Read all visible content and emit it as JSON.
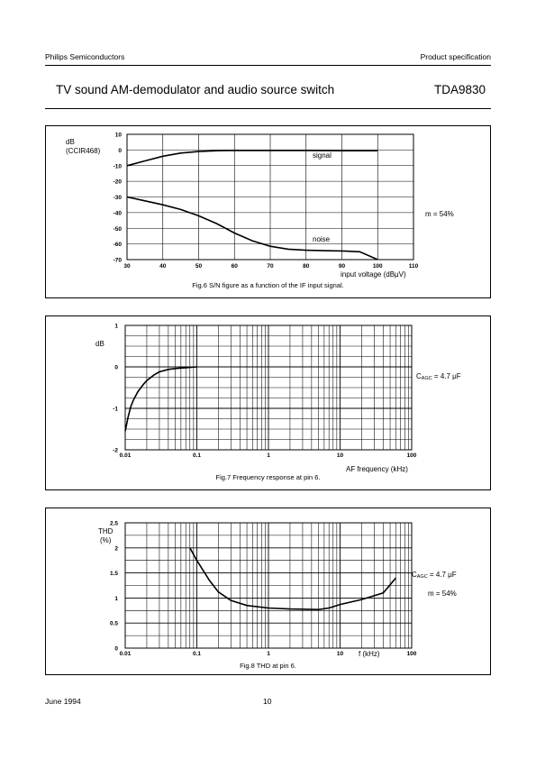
{
  "header": {
    "company": "Philips Semiconductors",
    "doc_type": "Product specification",
    "title": "TV sound AM-demodulator and audio source switch",
    "part": "TDA9830"
  },
  "footer": {
    "date": "June 1994",
    "page": "10"
  },
  "chart_data": [
    {
      "type": "line",
      "ylabel": "dB\n(CCIR468)",
      "xlabel": "input voltage (dBμV)",
      "xlim": [
        30,
        110
      ],
      "ylim": [
        -70,
        10
      ],
      "x_ticks": [
        30,
        40,
        50,
        60,
        70,
        80,
        90,
        100,
        110
      ],
      "y_ticks": [
        10,
        0,
        -10,
        -20,
        -30,
        -40,
        -50,
        -60,
        -70
      ],
      "grid": true,
      "series": [
        {
          "name": "signal",
          "x": [
            30,
            35,
            40,
            45,
            50,
            55,
            60,
            70,
            80,
            90,
            100
          ],
          "y": [
            -10,
            -7,
            -4,
            -2,
            -1,
            -0.5,
            -0.3,
            -0.3,
            -0.3,
            -0.5,
            -0.5
          ]
        },
        {
          "name": "noise",
          "x": [
            30,
            35,
            40,
            45,
            50,
            55,
            60,
            65,
            70,
            75,
            80,
            85,
            90,
            95,
            100
          ],
          "y": [
            -30,
            -32.5,
            -35,
            -38,
            -42,
            -47,
            -53,
            -58,
            -61.5,
            -63.3,
            -64,
            -64.3,
            -64.5,
            -65,
            -70
          ]
        }
      ],
      "annotation": "m = 54%",
      "caption": "Fig.6  S/N figure as a function of the IF input signal."
    },
    {
      "type": "line",
      "ylabel": "dB",
      "xlabel": "AF frequency (kHz)",
      "xscale": "log",
      "xlim": [
        0.01,
        100
      ],
      "ylim": [
        -2,
        1
      ],
      "x_ticks": [
        "0.01",
        "0.1",
        "1",
        "10",
        "100"
      ],
      "y_ticks": [
        "1",
        "0",
        "-1",
        "-2"
      ],
      "grid": true,
      "series": [
        {
          "name": "",
          "x": [
            0.01,
            0.011,
            0.012,
            0.013,
            0.015,
            0.018,
            0.02,
            0.025,
            0.03,
            0.04,
            0.05,
            0.07,
            0.1
          ],
          "y": [
            -1.55,
            -1.2,
            -0.95,
            -0.8,
            -0.6,
            -0.42,
            -0.33,
            -0.2,
            -0.12,
            -0.06,
            -0.04,
            -0.02,
            0
          ]
        }
      ],
      "annotation": "C_AGC = 4.7 μF",
      "caption": "Fig.7  Frequency response at pin 6."
    },
    {
      "type": "line",
      "ylabel": "THD\n(%)",
      "xlabel": "f (kHz)",
      "xscale": "log",
      "xlim": [
        0.01,
        100
      ],
      "ylim": [
        0,
        2.5
      ],
      "x_ticks": [
        "0.01",
        "0.1",
        "1",
        "10",
        "100"
      ],
      "y_ticks": [
        "2.5",
        "2",
        "1.5",
        "1",
        "0.5",
        "0"
      ],
      "grid": true,
      "series": [
        {
          "name": "",
          "x": [
            0.08,
            0.1,
            0.15,
            0.2,
            0.3,
            0.5,
            1,
            2,
            5,
            7,
            10,
            20,
            40,
            60
          ],
          "y": [
            2,
            1.75,
            1.35,
            1.12,
            0.95,
            0.85,
            0.8,
            0.78,
            0.77,
            0.8,
            0.87,
            0.97,
            1.1,
            1.4
          ]
        }
      ],
      "annotations": [
        "C_AGC = 4.7 μF",
        "m = 54%"
      ],
      "caption": "Fig.8  THD at pin 6."
    }
  ]
}
